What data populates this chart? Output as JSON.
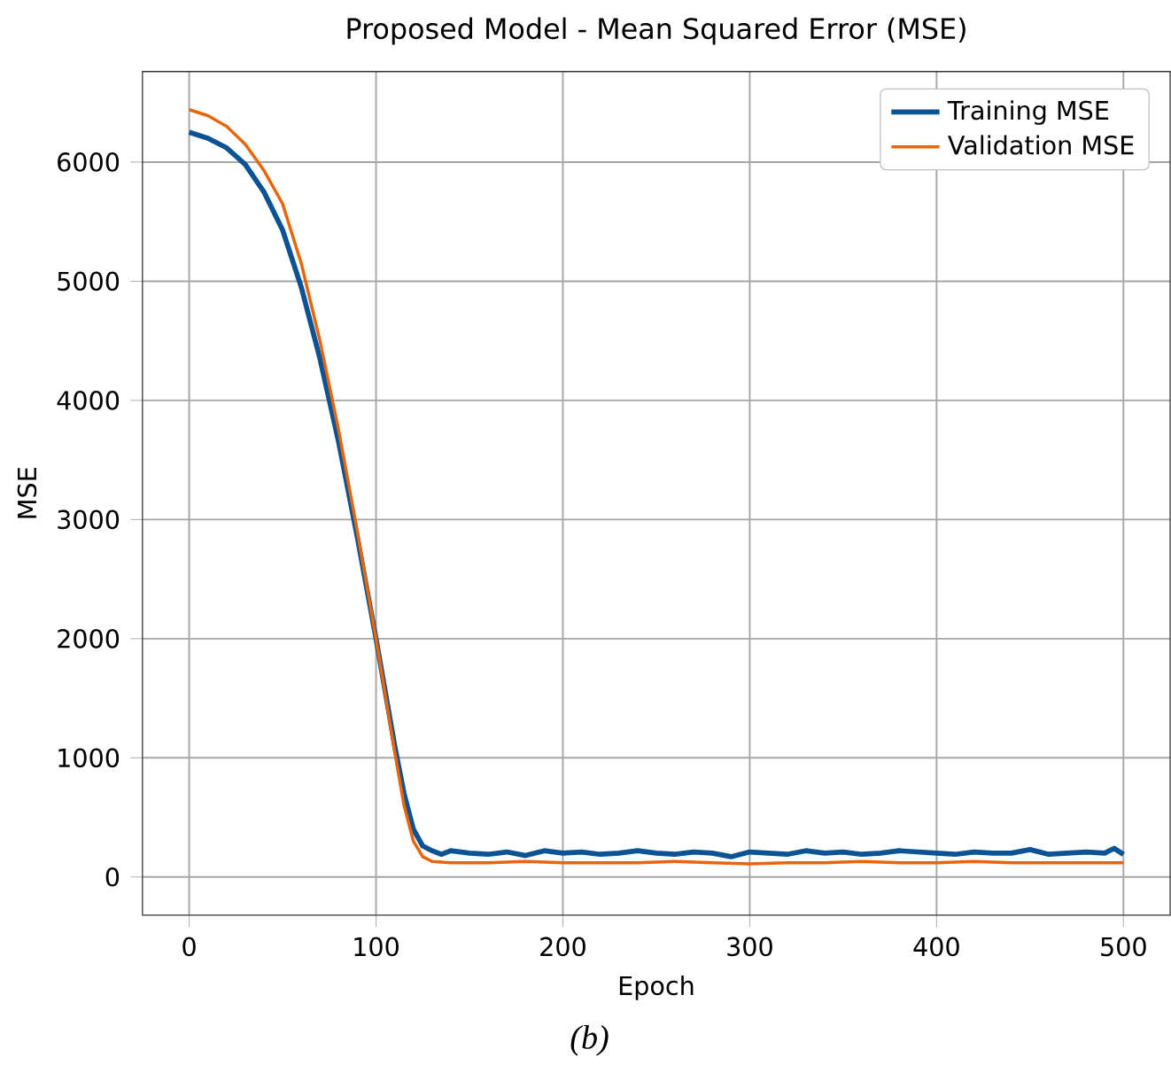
{
  "chart_data": {
    "type": "line",
    "title": "Proposed Model - Mean Squared Error (MSE)",
    "xlabel": "Epoch",
    "ylabel": "MSE",
    "annotations": [
      "(b)"
    ],
    "xlim": [
      -25,
      525
    ],
    "ylim": [
      -320,
      6760
    ],
    "xticks": [
      0,
      100,
      200,
      300,
      400,
      500
    ],
    "yticks": [
      0,
      1000,
      2000,
      3000,
      4000,
      5000,
      6000
    ],
    "grid": true,
    "legend": "top right",
    "series": [
      {
        "name": "Training MSE",
        "color": "#0b5394",
        "x": [
          0,
          10,
          20,
          30,
          40,
          50,
          60,
          70,
          80,
          90,
          100,
          110,
          115,
          120,
          125,
          130,
          135,
          140,
          150,
          160,
          170,
          180,
          190,
          200,
          210,
          220,
          230,
          240,
          250,
          260,
          270,
          280,
          290,
          300,
          310,
          320,
          330,
          340,
          350,
          360,
          370,
          380,
          390,
          400,
          410,
          420,
          430,
          440,
          450,
          460,
          470,
          480,
          490,
          495,
          500
        ],
        "values": [
          6250,
          6200,
          6120,
          5980,
          5750,
          5430,
          4950,
          4350,
          3650,
          2850,
          2000,
          1100,
          700,
          400,
          260,
          220,
          190,
          220,
          200,
          190,
          210,
          180,
          220,
          200,
          210,
          190,
          200,
          220,
          200,
          190,
          210,
          200,
          170,
          210,
          200,
          190,
          220,
          200,
          210,
          190,
          200,
          220,
          210,
          200,
          190,
          210,
          200,
          200,
          230,
          190,
          200,
          210,
          200,
          240,
          190
        ]
      },
      {
        "name": "Validation MSE",
        "color": "#e8650a",
        "x": [
          0,
          10,
          20,
          30,
          40,
          50,
          60,
          70,
          80,
          90,
          100,
          110,
          115,
          120,
          125,
          130,
          140,
          160,
          180,
          200,
          220,
          240,
          260,
          280,
          300,
          320,
          340,
          360,
          380,
          400,
          420,
          440,
          460,
          480,
          500
        ],
        "values": [
          6440,
          6390,
          6300,
          6150,
          5930,
          5650,
          5150,
          4500,
          3750,
          2900,
          2000,
          1050,
          600,
          300,
          170,
          130,
          120,
          120,
          130,
          120,
          120,
          120,
          130,
          120,
          110,
          120,
          120,
          130,
          120,
          120,
          130,
          120,
          120,
          120,
          120
        ]
      }
    ]
  }
}
